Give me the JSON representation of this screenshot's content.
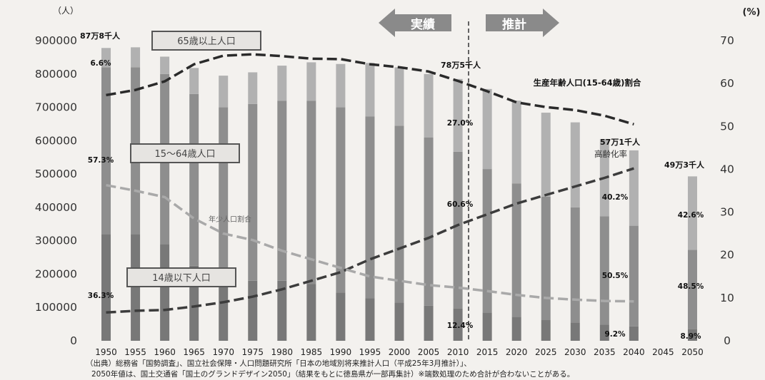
{
  "chart_data": {
    "type": "bar",
    "left_axis": {
      "unit": "（人）",
      "ticks": [
        0,
        100000,
        200000,
        300000,
        400000,
        500000,
        600000,
        700000,
        800000,
        900000
      ],
      "ylim": [
        0,
        900000
      ]
    },
    "right_axis": {
      "unit": "(%)",
      "ticks": [
        0,
        10,
        20,
        30,
        40,
        50,
        60,
        70
      ],
      "ylim": [
        0,
        70
      ]
    },
    "categories": [
      "1950",
      "1955",
      "1960",
      "1965",
      "1970",
      "1975",
      "1980",
      "1985",
      "1990",
      "1995",
      "2000",
      "2005",
      "2010",
      "2015",
      "2020",
      "2025",
      "2030",
      "2035",
      "2040",
      "2045",
      "2050"
    ],
    "series": [
      {
        "name": "14歳以下人口",
        "stacked": true,
        "values": [
          320000,
          320000,
          290000,
          225000,
          185000,
          180000,
          180000,
          170000,
          145000,
          128000,
          115000,
          105000,
          97000,
          85000,
          72000,
          62000,
          55000,
          48000,
          43000,
          null,
          35000
        ]
      },
      {
        "name": "15～64歳人口",
        "stacked": true,
        "values": [
          500000,
          500000,
          510000,
          515000,
          515000,
          530000,
          540000,
          550000,
          555000,
          545000,
          530000,
          505000,
          470000,
          430000,
          400000,
          370000,
          345000,
          325000,
          302000,
          null,
          238000
        ]
      },
      {
        "name": "65歳以上人口",
        "stacked": true,
        "values": [
          58000,
          60000,
          52000,
          78000,
          95000,
          95000,
          105000,
          115000,
          130000,
          160000,
          175000,
          190000,
          218000,
          240000,
          248000,
          252000,
          255000,
          232000,
          226000,
          null,
          220000
        ]
      },
      {
        "name": "生産年齢人口(15-64歳)割合",
        "axis": "right",
        "type": "line",
        "values": [
          57.3,
          58.5,
          60.5,
          64.5,
          66.5,
          66.8,
          66.4,
          65.8,
          65.7,
          64.5,
          63.8,
          62.8,
          60.6,
          58.2,
          55.6,
          54.5,
          53.8,
          52.5,
          50.5,
          null,
          null
        ]
      },
      {
        "name": "年少人口割合",
        "axis": "right",
        "type": "line",
        "values": [
          36.3,
          35.0,
          33.5,
          28.5,
          25.0,
          23.5,
          21.0,
          19.0,
          17.0,
          15.0,
          14.0,
          13.0,
          12.4,
          11.6,
          10.7,
          10.0,
          9.6,
          9.3,
          9.2,
          null,
          null
        ]
      },
      {
        "name": "高齢化率",
        "axis": "right",
        "type": "line",
        "values": [
          6.6,
          7.0,
          7.2,
          8.0,
          9.0,
          10.3,
          12.0,
          14.0,
          16.0,
          19.0,
          21.5,
          24.0,
          27.0,
          29.5,
          32.0,
          34.0,
          36.0,
          38.0,
          40.2,
          null,
          null
        ]
      }
    ],
    "bar_labels": [
      "87万8千人",
      "78万5千人",
      "57万1千人",
      "49万3千人"
    ],
    "pct_labels": [
      "6.6%",
      "57.3%",
      "36.3%",
      "27.0%",
      "60.6%",
      "12.4%",
      "40.2%",
      "50.5%",
      "9.2%",
      "42.6%",
      "48.5%",
      "8.9%"
    ],
    "legend_boxes": [
      "65歳以上人口",
      "15～64歳人口",
      "14歳以下人口"
    ],
    "line_labels": [
      "生産年齢人口(15-64歳)割合",
      "高齢化率",
      "年少人口割合"
    ],
    "period_labels": {
      "actual": "実績",
      "forecast": "推計"
    },
    "colors": {
      "bar_young": "#787878",
      "bar_working": "#8e8e8e",
      "bar_elder": "#b1b1b1",
      "line_dark": "#2a2a2a",
      "line_light": "#a9a9a9",
      "arrow": "#8a8a8a"
    }
  },
  "source": {
    "line1": "（出典）総務省「国勢調査」、国立社会保障・人口問題研究所「日本の地域別将来推計人口（平成25年3月推計）」、",
    "line2": "2050年値は、国土交通省「国土のグランドデザイン2050」（結果をもとに徳島県が一部再集計）※端数処理のため合計が合わないことがある。"
  }
}
